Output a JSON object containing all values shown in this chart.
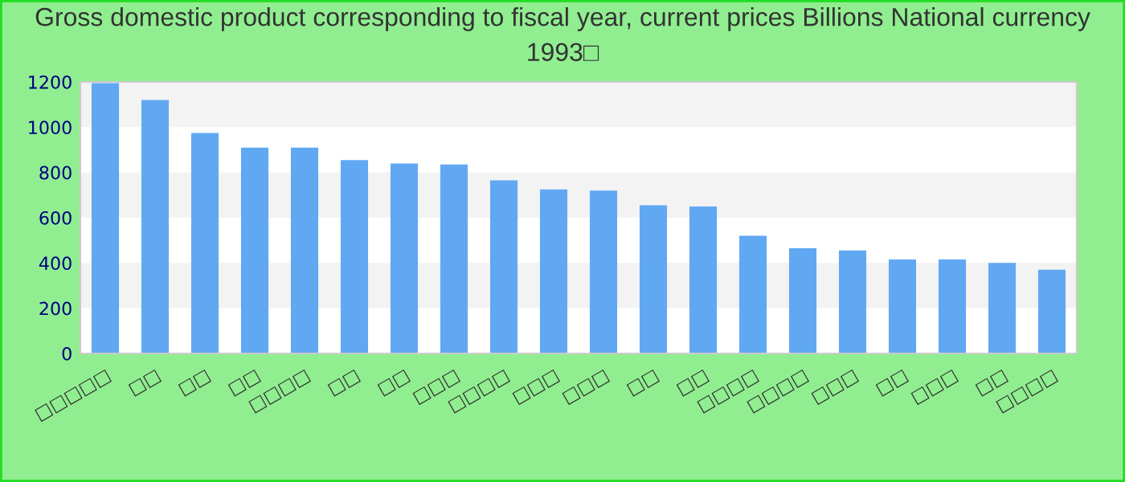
{
  "chart_data": {
    "type": "bar",
    "title": "Gross domestic product corresponding to fiscal year, current prices Billions National currency\n1993□",
    "categories": [
      "□□□□□",
      "□□",
      "□□",
      "□□",
      "□□□□",
      "□□",
      "□□",
      "□□□",
      "□□□□",
      "□□□",
      "□□□",
      "□□",
      "□□",
      "□□□□",
      "□□□□",
      "□□□",
      "□□",
      "□□□",
      "□□",
      "□□□□"
    ],
    "values": [
      1195,
      1120,
      975,
      910,
      910,
      855,
      840,
      835,
      765,
      725,
      720,
      655,
      650,
      520,
      465,
      455,
      415,
      415,
      400,
      370
    ],
    "color": "#61a8f3",
    "ylim": [
      0,
      1200
    ],
    "yticks": [
      0,
      200,
      400,
      600,
      800,
      1000,
      1200
    ],
    "bands": [
      {
        "axis": "y",
        "from": 200,
        "to": 400,
        "color": "#f3f3f3"
      },
      {
        "axis": "y",
        "from": 600,
        "to": 800,
        "color": "#f3f3f3"
      },
      {
        "axis": "y",
        "from": 1000,
        "to": 1200,
        "color": "#f3f3f3"
      }
    ],
    "grid": false
  }
}
